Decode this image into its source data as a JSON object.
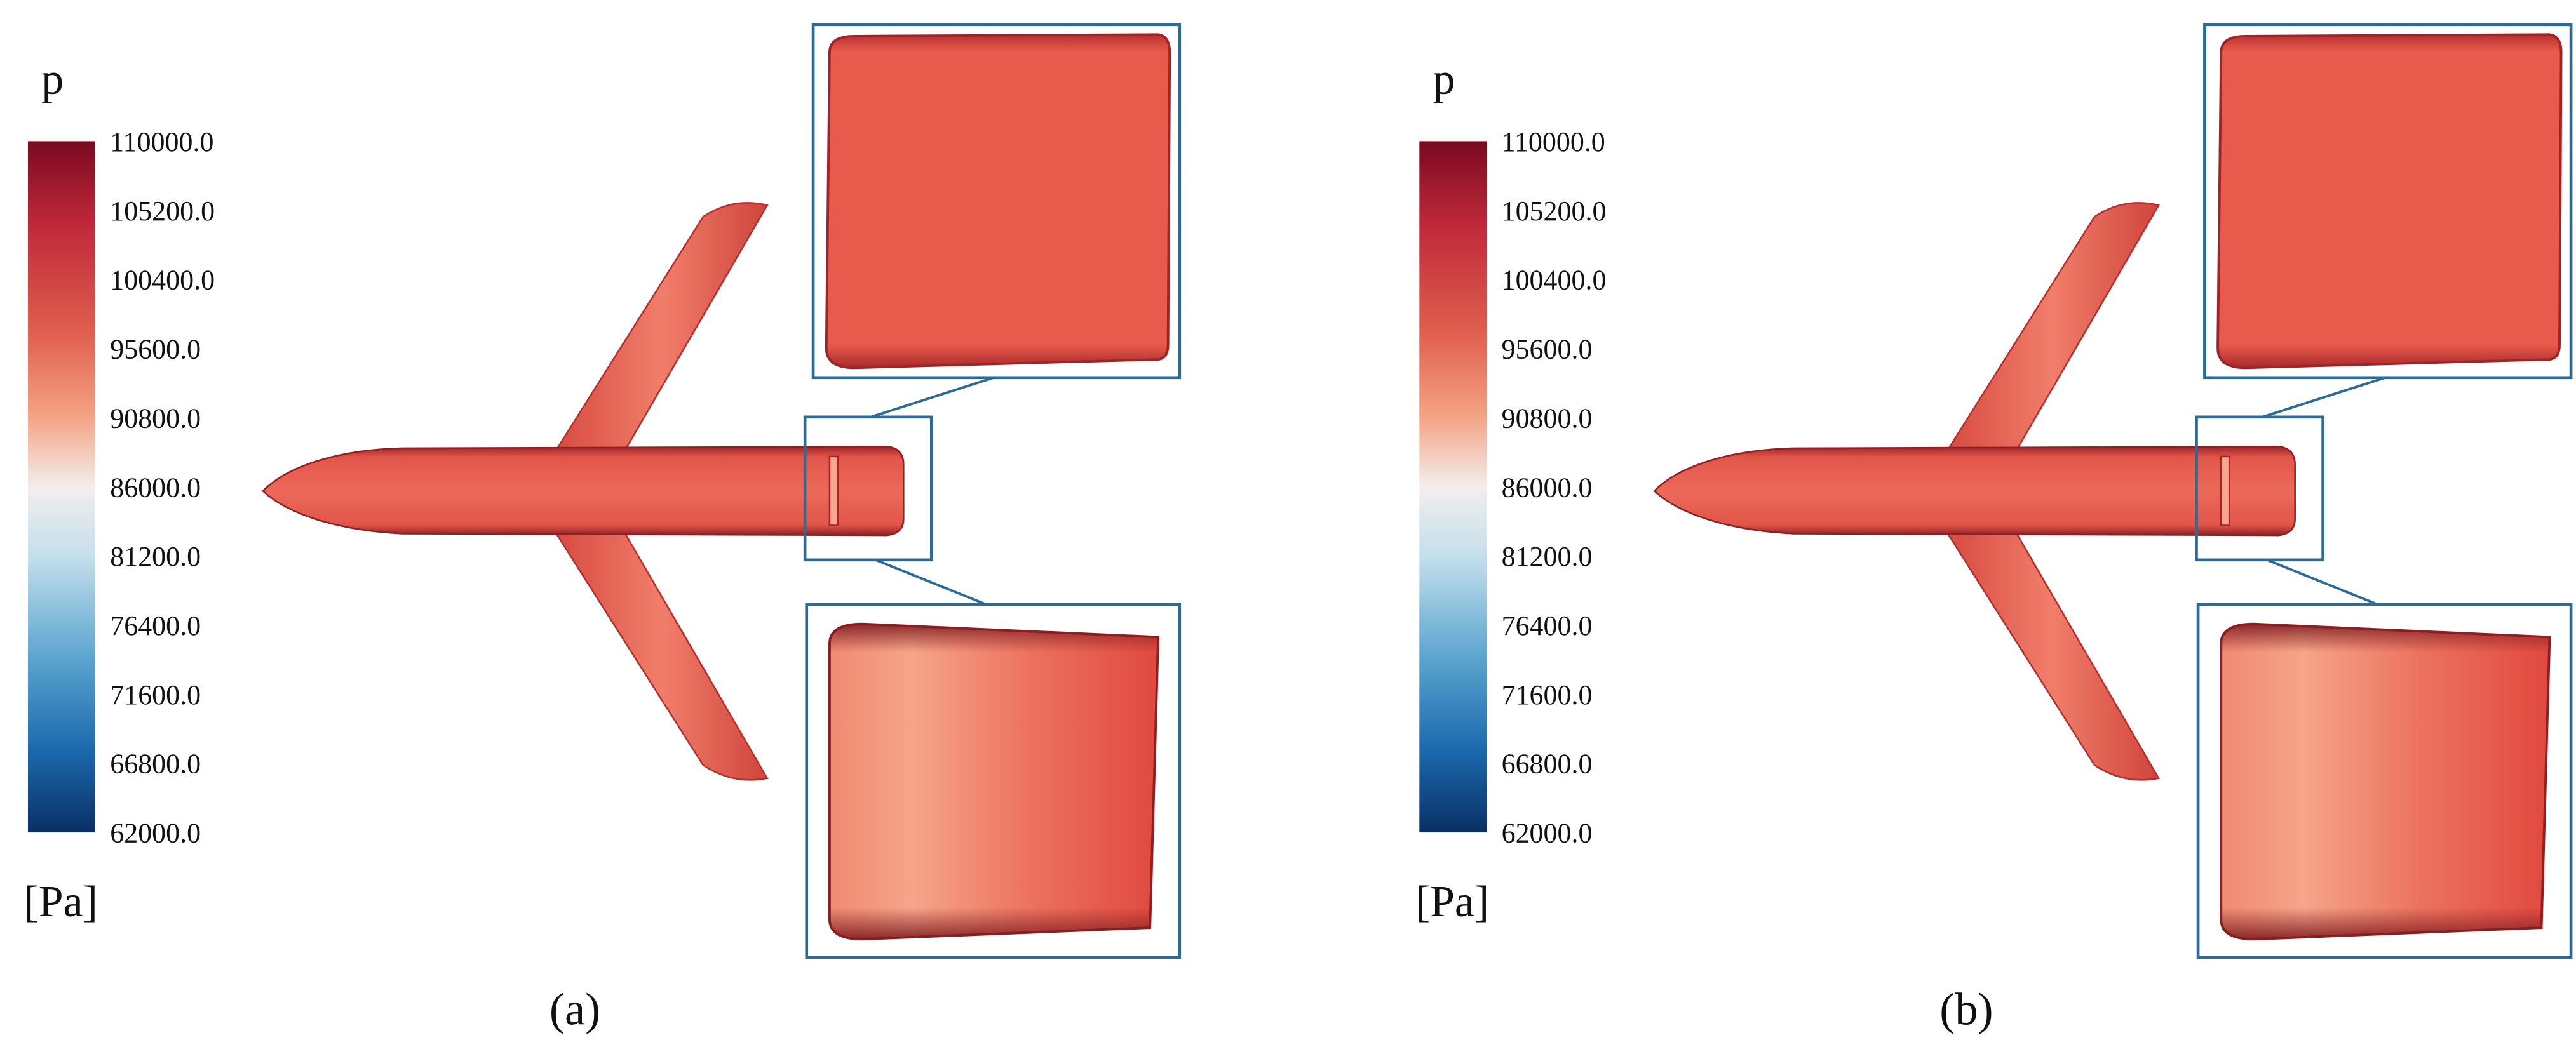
{
  "panels": [
    {
      "colorbar": {
        "title": "p",
        "unit": "[Pa]",
        "ticks": [
          "110000.0",
          "105200.0",
          "100400.0",
          "95600.0",
          "90800.0",
          "86000.0",
          "81200.0",
          "76400.0",
          "71600.0",
          "66800.0",
          "62000.0"
        ]
      },
      "caption": "(a)"
    },
    {
      "colorbar": {
        "title": "p",
        "unit": "[Pa]",
        "ticks": [
          "110000.0",
          "105200.0",
          "100400.0",
          "95600.0",
          "90800.0",
          "86000.0",
          "81200.0",
          "76400.0",
          "71600.0",
          "66800.0",
          "62000.0"
        ]
      },
      "caption": "(b)"
    }
  ]
}
